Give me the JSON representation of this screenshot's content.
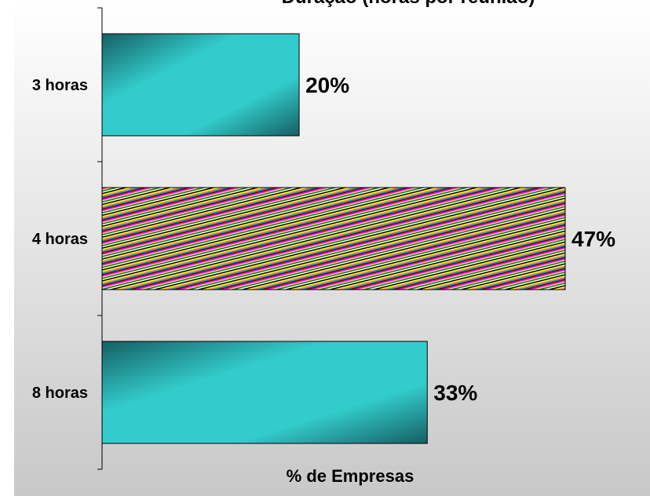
{
  "chart_data": {
    "type": "bar",
    "orientation": "horizontal",
    "title": "Duração (horas por reunião)",
    "categories": [
      "3 horas",
      "4 horas",
      "8 horas"
    ],
    "values": [
      20,
      47,
      33
    ],
    "data_labels": [
      "20%",
      "47%",
      "33%"
    ],
    "xlabel": "% de Empresas",
    "ylabel": "",
    "xlim": [
      0,
      55
    ],
    "grid": false,
    "legend": "none",
    "colors": {
      "teal": "#33cccc",
      "teal_dark": "#155f63",
      "background_top": "#ffffff",
      "background_bottom": "#c8c8c8",
      "highlight_stripes": [
        "#000000",
        "#ffff00",
        "#ff8080",
        "#00a0a0",
        "#800000",
        "#ff00ff",
        "#ffcc99",
        "#008000",
        "#ffffff"
      ]
    },
    "highlighted_index": 1
  }
}
